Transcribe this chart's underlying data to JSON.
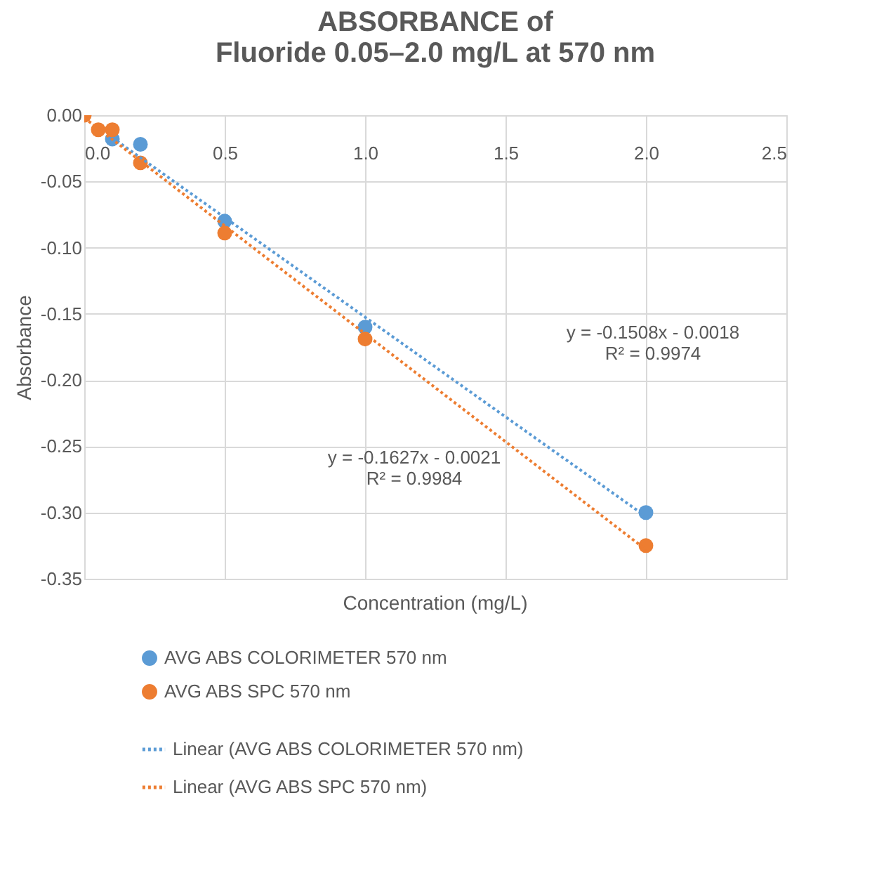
{
  "chart_data": {
    "type": "scatter",
    "title": "ABSORBANCE of\nFluoride 0.05–2.0 mg/L at 570 nm",
    "xlabel": "Concentration (mg/L)",
    "ylabel": "Absorbance",
    "xlim": [
      0,
      2.5
    ],
    "xticks": [
      {
        "value": 0,
        "label": "0.0"
      },
      {
        "value": 0.5,
        "label": "0.5"
      },
      {
        "value": 1,
        "label": "1.0"
      },
      {
        "value": 1.5,
        "label": "1.5"
      },
      {
        "value": 2,
        "label": "2.0"
      },
      {
        "value": 2.5,
        "label": "2.5"
      }
    ],
    "ylim": [
      -0.35,
      0
    ],
    "yticks": [
      {
        "value": 0,
        "label": "0.00"
      },
      {
        "value": -0.05,
        "label": "-0.05"
      },
      {
        "value": -0.1,
        "label": "-0.10"
      },
      {
        "value": -0.15,
        "label": "-0.15"
      },
      {
        "value": -0.2,
        "label": "-0.20"
      },
      {
        "value": -0.25,
        "label": "-0.25"
      },
      {
        "value": -0.3,
        "label": "-0.30"
      },
      {
        "value": -0.35,
        "label": "-0.35"
      }
    ],
    "grid": true,
    "legend": "bottom",
    "marker": "circle",
    "series": [
      {
        "name": "AVG ABS COLORIMETER 570 nm",
        "color": "#5b9bd5",
        "x": [
          0.1,
          0.2,
          0.5,
          1.0,
          2.0
        ],
        "values": [
          -0.018,
          -0.022,
          -0.08,
          -0.16,
          -0.3
        ]
      },
      {
        "name": "AVG ABS SPC 570 nm",
        "color": "#ed7d31",
        "x": [
          0,
          0.05,
          0.1,
          0.2,
          0.5,
          1.0,
          2.0
        ],
        "values": [
          0.0,
          -0.011,
          -0.011,
          -0.036,
          -0.089,
          -0.169,
          -0.325
        ]
      },
      {
        "name": "Linear (AVG ABS COLORIMETER 570 nm)",
        "type": "line",
        "marker": "none",
        "line_style": "dotted",
        "color": "#5b9bd5",
        "x": [
          0.1,
          2.0
        ],
        "values": [
          -0.017,
          -0.303
        ]
      },
      {
        "name": "Linear (AVG ABS SPC 570 nm)",
        "type": "line",
        "marker": "none",
        "line_style": "dotted",
        "color": "#ed7d31",
        "x": [
          0,
          2.0
        ],
        "values": [
          -0.002,
          -0.328
        ]
      }
    ],
    "annotations": [
      "y = -0.1508x - 0.0018\nR² = 0.9974",
      "y = -0.1627x - 0.0021\nR² = 0.9984"
    ]
  }
}
